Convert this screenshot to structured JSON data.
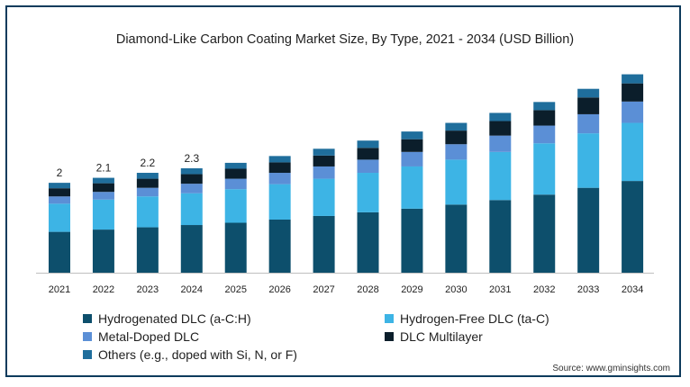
{
  "chart_data": {
    "type": "bar",
    "stacked": true,
    "title": "Diamond-Like Carbon Coating Market Size, By Type, 2021 - 2034 (USD Billion)",
    "categories": [
      "2021",
      "2022",
      "2023",
      "2024",
      "2025",
      "2026",
      "2027",
      "2028",
      "2029",
      "2030",
      "2031",
      "2032",
      "2033",
      "2034"
    ],
    "totals_labeled": [
      "2",
      "2.1",
      "2.2",
      "2.3",
      "",
      "",
      "",
      "",
      "",
      "",
      "",
      "",
      "",
      ""
    ],
    "series": [
      {
        "name": "Hydrogenated DLC (a-C:H)",
        "color": "#0d4f6c",
        "values": [
          0.9,
          0.95,
          1.0,
          1.05,
          1.1,
          1.17,
          1.25,
          1.33,
          1.41,
          1.5,
          1.6,
          1.72,
          1.87,
          2.02
        ]
      },
      {
        "name": "Hydrogen-Free DLC (ta-C)",
        "color": "#3db4e5",
        "values": [
          0.62,
          0.66,
          0.68,
          0.7,
          0.74,
          0.78,
          0.82,
          0.87,
          0.93,
          0.99,
          1.06,
          1.13,
          1.2,
          1.28
        ]
      },
      {
        "name": "Metal-Doped DLC",
        "color": "#5b8fd6",
        "values": [
          0.16,
          0.17,
          0.19,
          0.21,
          0.23,
          0.25,
          0.27,
          0.29,
          0.32,
          0.34,
          0.36,
          0.39,
          0.42,
          0.47
        ]
      },
      {
        "name": "DLC Multilayer",
        "color": "#0b1e2b",
        "values": [
          0.18,
          0.19,
          0.2,
          0.21,
          0.22,
          0.23,
          0.24,
          0.26,
          0.28,
          0.3,
          0.32,
          0.34,
          0.37,
          0.4
        ]
      },
      {
        "name": "Others (e.g., doped with Si, N, or F)",
        "color": "#1f6e9c",
        "values": [
          0.12,
          0.12,
          0.13,
          0.13,
          0.13,
          0.14,
          0.15,
          0.16,
          0.17,
          0.17,
          0.18,
          0.18,
          0.19,
          0.2
        ]
      }
    ],
    "ylim": [
      0,
      4.5
    ],
    "grid": false,
    "legend_position": "bottom"
  },
  "source": "Source: www.gminsights.com"
}
